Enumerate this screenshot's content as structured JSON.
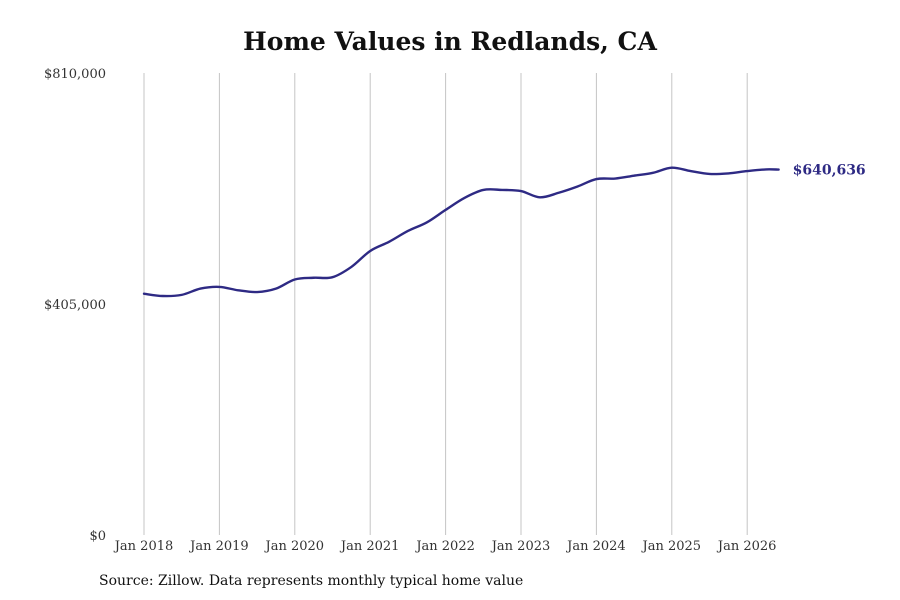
{
  "chart_data": {
    "type": "line",
    "title": "Home Values in Redlands, CA",
    "xlabel": "",
    "ylabel": "",
    "ylim": [
      0,
      810000
    ],
    "xlim": [
      "2018-01",
      "2026-06"
    ],
    "yticks": [
      "$0",
      "$405,000",
      "$810,000"
    ],
    "xticks": [
      "Jan 2018",
      "Jan 2019",
      "Jan 2020",
      "Jan 2021",
      "Jan 2022",
      "Jan 2023",
      "Jan 2024",
      "Jan 2025",
      "Jan 2026"
    ],
    "grid": {
      "vertical": true,
      "horizontal": false
    },
    "legend": "none",
    "series": [
      {
        "color": "#2e2a84",
        "end_label": "$640,636",
        "points": [
          {
            "x": "2018-01",
            "y": 423000
          },
          {
            "x": "2018-04",
            "y": 419000
          },
          {
            "x": "2018-07",
            "y": 421000
          },
          {
            "x": "2018-10",
            "y": 432000
          },
          {
            "x": "2019-01",
            "y": 435000
          },
          {
            "x": "2019-04",
            "y": 429000
          },
          {
            "x": "2019-07",
            "y": 426000
          },
          {
            "x": "2019-10",
            "y": 432000
          },
          {
            "x": "2020-01",
            "y": 448000
          },
          {
            "x": "2020-04",
            "y": 451000
          },
          {
            "x": "2020-07",
            "y": 452000
          },
          {
            "x": "2020-10",
            "y": 470000
          },
          {
            "x": "2021-01",
            "y": 498000
          },
          {
            "x": "2021-04",
            "y": 514000
          },
          {
            "x": "2021-07",
            "y": 533000
          },
          {
            "x": "2021-10",
            "y": 548000
          },
          {
            "x": "2022-01",
            "y": 570000
          },
          {
            "x": "2022-04",
            "y": 591000
          },
          {
            "x": "2022-07",
            "y": 605000
          },
          {
            "x": "2022-10",
            "y": 605000
          },
          {
            "x": "2023-01",
            "y": 603000
          },
          {
            "x": "2023-04",
            "y": 592000
          },
          {
            "x": "2023-07",
            "y": 600000
          },
          {
            "x": "2023-10",
            "y": 611000
          },
          {
            "x": "2024-01",
            "y": 624000
          },
          {
            "x": "2024-04",
            "y": 625000
          },
          {
            "x": "2024-07",
            "y": 630000
          },
          {
            "x": "2024-10",
            "y": 635000
          },
          {
            "x": "2025-01",
            "y": 644000
          },
          {
            "x": "2025-04",
            "y": 638000
          },
          {
            "x": "2025-07",
            "y": 633000
          },
          {
            "x": "2025-10",
            "y": 634000
          },
          {
            "x": "2026-01",
            "y": 638000
          },
          {
            "x": "2026-04",
            "y": 641000
          },
          {
            "x": "2026-06",
            "y": 640636
          }
        ]
      }
    ]
  },
  "footer": {
    "source": "Source: Zillow. Data represents monthly typical home value"
  }
}
